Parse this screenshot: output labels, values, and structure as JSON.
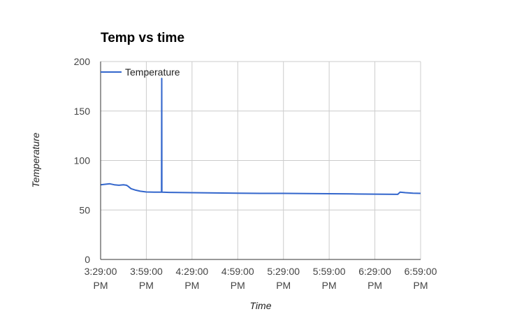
{
  "chart_data": {
    "type": "line",
    "title": "Temp vs time",
    "xlabel": "Time",
    "ylabel": "Temperature",
    "ylim": [
      0,
      200
    ],
    "yticks": [
      0,
      50,
      100,
      150,
      200
    ],
    "xlim_minutes": [
      0,
      210
    ],
    "xticks": [
      {
        "value": 0,
        "line1": "3:29:00",
        "line2": "PM"
      },
      {
        "value": 30,
        "line1": "3:59:00",
        "line2": "PM"
      },
      {
        "value": 60,
        "line1": "4:29:00",
        "line2": "PM"
      },
      {
        "value": 90,
        "line1": "4:59:00",
        "line2": "PM"
      },
      {
        "value": 120,
        "line1": "5:29:00",
        "line2": "PM"
      },
      {
        "value": 150,
        "line1": "5:59:00",
        "line2": "PM"
      },
      {
        "value": 180,
        "line1": "6:29:00",
        "line2": "PM"
      },
      {
        "value": 210,
        "line1": "6:59:00",
        "line2": "PM"
      }
    ],
    "grid": true,
    "legend_position": "top-left",
    "series": [
      {
        "name": "Temperature",
        "color": "#3366cc",
        "points": [
          [
            0,
            75.5
          ],
          [
            3,
            76
          ],
          [
            6,
            76.5
          ],
          [
            9,
            75.5
          ],
          [
            12,
            75
          ],
          [
            15,
            75.5
          ],
          [
            17,
            75
          ],
          [
            18,
            74
          ],
          [
            20,
            71.5
          ],
          [
            23,
            70
          ],
          [
            26,
            69
          ],
          [
            30,
            68.2
          ],
          [
            35,
            68
          ],
          [
            40,
            68
          ],
          [
            40.1,
            183
          ],
          [
            40.2,
            68
          ],
          [
            45,
            67.8
          ],
          [
            60,
            67.5
          ],
          [
            75,
            67.2
          ],
          [
            90,
            67
          ],
          [
            105,
            66.8
          ],
          [
            120,
            66.8
          ],
          [
            135,
            66.6
          ],
          [
            150,
            66.4
          ],
          [
            165,
            66.2
          ],
          [
            180,
            66
          ],
          [
            195,
            65.8
          ],
          [
            196.5,
            68
          ],
          [
            200,
            67.5
          ],
          [
            205,
            67
          ],
          [
            210,
            66.8
          ]
        ]
      }
    ]
  }
}
